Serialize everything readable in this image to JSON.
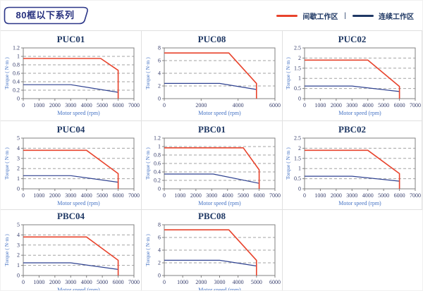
{
  "page": {
    "badge": "80框以下系列",
    "legend": {
      "intermittent": "间歇工作区",
      "separator": "|",
      "continuous": "连续工作区"
    },
    "colors": {
      "red": "#e8432c",
      "navy": "#2e4190",
      "grid": "#a3a3a3",
      "plot_border": "#808080",
      "tick_text": "#39406e",
      "axis_label": "#4472c4",
      "title": "#1f3864"
    }
  },
  "chart_data": [
    {
      "type": "line",
      "title": "PUC01",
      "xlabel": "Motor speed (rpm)",
      "ylabel": "Torque ( N·m )",
      "xlim": [
        0,
        7000
      ],
      "ylim": [
        0,
        1.2
      ],
      "xticks": [
        0,
        1000,
        2000,
        3000,
        4000,
        5000,
        6000,
        7000
      ],
      "yticks": [
        0,
        0.2,
        0.4,
        0.6,
        0.8,
        1,
        1.2
      ],
      "series": [
        {
          "name": "间歇工作区",
          "color": "red",
          "points": [
            [
              0,
              0.95
            ],
            [
              4900,
              0.95
            ],
            [
              6000,
              0.67
            ],
            [
              6000,
              0
            ]
          ]
        },
        {
          "name": "连续工作区",
          "color": "navy",
          "points": [
            [
              0,
              0.33
            ],
            [
              3000,
              0.33
            ],
            [
              6000,
              0.15
            ],
            [
              6000,
              0
            ]
          ]
        }
      ]
    },
    {
      "type": "line",
      "title": "PUC08",
      "xlabel": "Motor speed (rpm)",
      "ylabel": "Torque ( N·m )",
      "xlim": [
        0,
        6000
      ],
      "ylim": [
        0,
        8
      ],
      "xticks": [
        0,
        2000,
        4000,
        6000
      ],
      "yticks": [
        0,
        2,
        4,
        6,
        8
      ],
      "series": [
        {
          "name": "间歇工作区",
          "color": "red",
          "points": [
            [
              0,
              7.2
            ],
            [
              3500,
              7.2
            ],
            [
              5000,
              2.4
            ],
            [
              5000,
              0
            ]
          ]
        },
        {
          "name": "连续工作区",
          "color": "navy",
          "points": [
            [
              0,
              2.4
            ],
            [
              3000,
              2.4
            ],
            [
              5000,
              1.45
            ],
            [
              5000,
              0
            ]
          ]
        }
      ]
    },
    {
      "type": "line",
      "title": "PUC02",
      "xlabel": "Motor speed (rpm)",
      "ylabel": "Torque ( N·m )",
      "xlim": [
        0,
        7000
      ],
      "ylim": [
        0,
        2.5
      ],
      "xticks": [
        0,
        1000,
        2000,
        3000,
        4000,
        5000,
        6000,
        7000
      ],
      "yticks": [
        0,
        0.5,
        1,
        1.5,
        2,
        2.5
      ],
      "series": [
        {
          "name": "间歇工作区",
          "color": "red",
          "points": [
            [
              0,
              1.9
            ],
            [
              4000,
              1.9
            ],
            [
              6000,
              0.6
            ],
            [
              6000,
              0
            ]
          ]
        },
        {
          "name": "连续工作区",
          "color": "navy",
          "points": [
            [
              0,
              0.62
            ],
            [
              3000,
              0.62
            ],
            [
              6000,
              0.35
            ],
            [
              6000,
              0
            ]
          ]
        }
      ]
    },
    {
      "type": "line",
      "title": "PUC04",
      "xlabel": "Motor speed (rpm)",
      "ylabel": "Torque ( N·m )",
      "xlim": [
        0,
        7000
      ],
      "ylim": [
        0,
        5
      ],
      "xticks": [
        0,
        1000,
        2000,
        3000,
        4000,
        5000,
        6000,
        7000
      ],
      "yticks": [
        0,
        1,
        2,
        3,
        4,
        5
      ],
      "series": [
        {
          "name": "间歇工作区",
          "color": "red",
          "points": [
            [
              0,
              3.8
            ],
            [
              4000,
              3.8
            ],
            [
              6000,
              1.5
            ],
            [
              6000,
              0
            ]
          ]
        },
        {
          "name": "连续工作区",
          "color": "navy",
          "points": [
            [
              0,
              1.3
            ],
            [
              3000,
              1.3
            ],
            [
              6000,
              0.65
            ],
            [
              6000,
              0
            ]
          ]
        }
      ]
    },
    {
      "type": "line",
      "title": "PBC01",
      "xlabel": "Motor speed (rpm)",
      "ylabel": "Torque ( N·m )",
      "xlim": [
        0,
        7000
      ],
      "ylim": [
        0,
        1.2
      ],
      "xticks": [
        0,
        1000,
        2000,
        3000,
        4000,
        5000,
        6000,
        7000
      ],
      "yticks": [
        0,
        0.2,
        0.4,
        0.6,
        0.8,
        1,
        1.2
      ],
      "series": [
        {
          "name": "间歇工作区",
          "color": "red",
          "points": [
            [
              0,
              0.97
            ],
            [
              5000,
              0.97
            ],
            [
              6000,
              0.45
            ],
            [
              6000,
              0
            ]
          ]
        },
        {
          "name": "连续工作区",
          "color": "navy",
          "points": [
            [
              0,
              0.35
            ],
            [
              3100,
              0.35
            ],
            [
              6000,
              0.13
            ],
            [
              6000,
              0
            ]
          ]
        }
      ]
    },
    {
      "type": "line",
      "title": "PBC02",
      "xlabel": "Motor speed (rpm)",
      "ylabel": "Torque ( N·m )",
      "xlim": [
        0,
        7000
      ],
      "ylim": [
        0,
        2.5
      ],
      "xticks": [
        0,
        1000,
        2000,
        3000,
        4000,
        5000,
        6000,
        7000
      ],
      "yticks": [
        0,
        0.5,
        1,
        1.5,
        2,
        2.5
      ],
      "series": [
        {
          "name": "间歇工作区",
          "color": "red",
          "points": [
            [
              0,
              1.9
            ],
            [
              4000,
              1.9
            ],
            [
              6000,
              0.75
            ],
            [
              6000,
              0
            ]
          ]
        },
        {
          "name": "连续工作区",
          "color": "navy",
          "points": [
            [
              0,
              0.62
            ],
            [
              3000,
              0.62
            ],
            [
              6000,
              0.38
            ],
            [
              6000,
              0
            ]
          ]
        }
      ]
    },
    {
      "type": "line",
      "title": "PBC04",
      "xlabel": "Motor speed (rpm)",
      "ylabel": "Torque ( N·m )",
      "xlim": [
        0,
        7000
      ],
      "ylim": [
        0,
        5
      ],
      "xticks": [
        0,
        1000,
        2000,
        3000,
        4000,
        5000,
        6000,
        7000
      ],
      "yticks": [
        0,
        1,
        2,
        3,
        4,
        5
      ],
      "series": [
        {
          "name": "间歇工作区",
          "color": "red",
          "points": [
            [
              0,
              3.8
            ],
            [
              4000,
              3.8
            ],
            [
              6000,
              1.5
            ],
            [
              6000,
              0
            ]
          ]
        },
        {
          "name": "连续工作区",
          "color": "navy",
          "points": [
            [
              0,
              1.25
            ],
            [
              3000,
              1.25
            ],
            [
              6000,
              0.6
            ],
            [
              6000,
              0
            ]
          ]
        }
      ]
    },
    {
      "type": "line",
      "title": "PBC08",
      "xlabel": "Motor speed (rpm)",
      "ylabel": "Torque ( N·m )",
      "xlim": [
        0,
        6000
      ],
      "ylim": [
        0,
        8
      ],
      "xticks": [
        0,
        1000,
        2000,
        3000,
        4000,
        5000,
        6000
      ],
      "yticks": [
        0,
        2,
        4,
        6,
        8
      ],
      "series": [
        {
          "name": "间歇工作区",
          "color": "red",
          "points": [
            [
              0,
              7.2
            ],
            [
              3500,
              7.2
            ],
            [
              5000,
              2.4
            ],
            [
              5000,
              0
            ]
          ]
        },
        {
          "name": "连续工作区",
          "color": "navy",
          "points": [
            [
              0,
              2.4
            ],
            [
              3000,
              2.4
            ],
            [
              5000,
              1.5
            ],
            [
              5000,
              0
            ]
          ]
        }
      ]
    }
  ]
}
